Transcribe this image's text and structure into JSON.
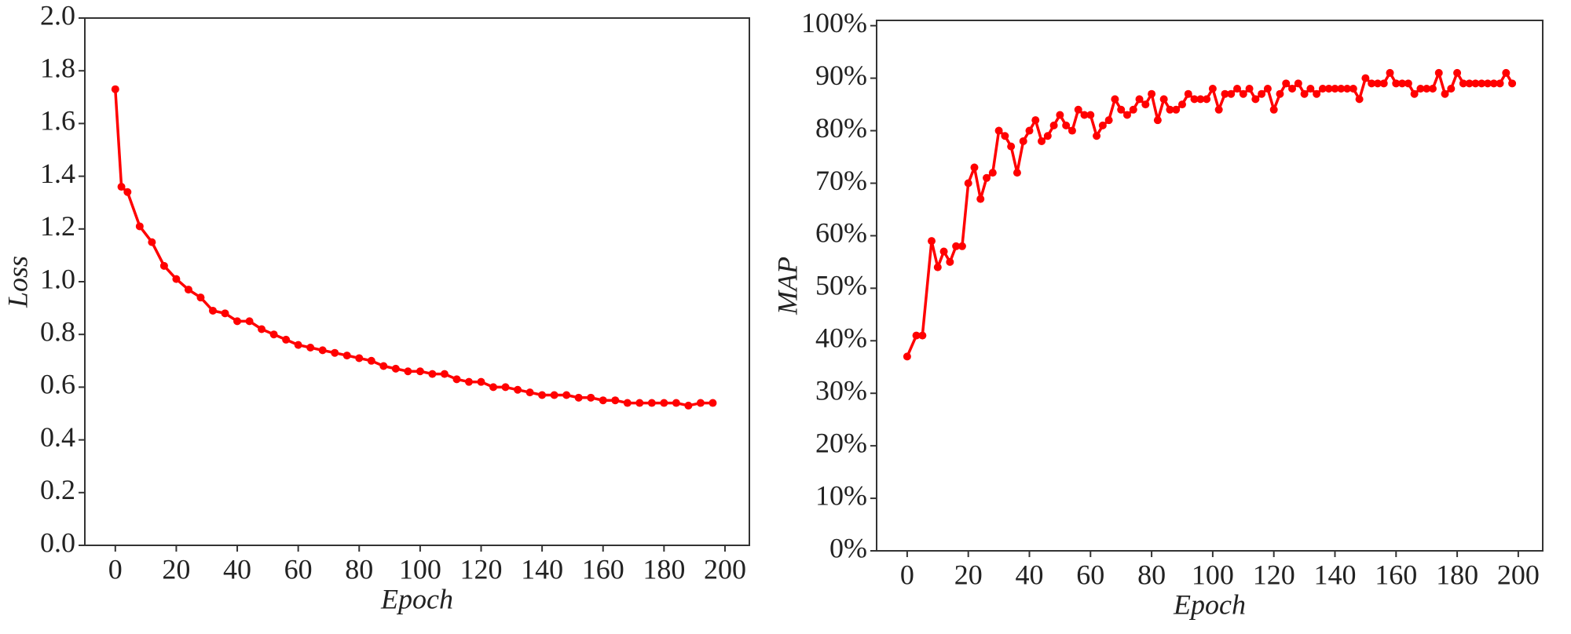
{
  "chart_data": [
    {
      "type": "line",
      "xlabel": "Epoch",
      "ylabel": "Loss",
      "color": "#ff0000",
      "x": [
        0,
        2,
        4,
        8,
        12,
        16,
        20,
        24,
        28,
        32,
        36,
        40,
        44,
        48,
        52,
        56,
        60,
        64,
        68,
        72,
        76,
        80,
        84,
        88,
        92,
        96,
        100,
        104,
        108,
        112,
        116,
        120,
        124,
        128,
        132,
        136,
        140,
        144,
        148,
        152,
        156,
        160,
        164,
        168,
        172,
        176,
        180,
        184,
        188,
        192,
        196
      ],
      "values": [
        1.73,
        1.36,
        1.34,
        1.21,
        1.15,
        1.06,
        1.01,
        0.97,
        0.94,
        0.89,
        0.88,
        0.85,
        0.85,
        0.82,
        0.8,
        0.78,
        0.76,
        0.75,
        0.74,
        0.73,
        0.72,
        0.71,
        0.7,
        0.68,
        0.67,
        0.66,
        0.66,
        0.65,
        0.65,
        0.63,
        0.62,
        0.62,
        0.6,
        0.6,
        0.59,
        0.58,
        0.57,
        0.57,
        0.57,
        0.56,
        0.56,
        0.55,
        0.55,
        0.54,
        0.54,
        0.54,
        0.54,
        0.54,
        0.53,
        0.54,
        0.54
      ],
      "xlim": [
        -10,
        208
      ],
      "xticks": [
        0,
        20,
        40,
        60,
        80,
        100,
        120,
        140,
        160,
        180,
        200
      ],
      "ylim": [
        0,
        2
      ],
      "yticks": [
        {
          "value": 0,
          "label": "0.0"
        },
        {
          "value": 0.2,
          "label": "0.2"
        },
        {
          "value": 0.4,
          "label": "0.4"
        },
        {
          "value": 0.6,
          "label": "0.6"
        },
        {
          "value": 0.8,
          "label": "0.8"
        },
        {
          "value": 1,
          "label": "1.0"
        },
        {
          "value": 1.2,
          "label": "1.2"
        },
        {
          "value": 1.4,
          "label": "1.4"
        },
        {
          "value": 1.6,
          "label": "1.6"
        },
        {
          "value": 1.8,
          "label": "1.8"
        },
        {
          "value": 2,
          "label": "2.0"
        }
      ]
    },
    {
      "type": "line",
      "xlabel": "Epoch",
      "ylabel": "MAP",
      "color": "#ff0000",
      "x": [
        0,
        3,
        5,
        8,
        10,
        12,
        14,
        16,
        18,
        20,
        22,
        24,
        26,
        28,
        30,
        32,
        34,
        36,
        38,
        40,
        42,
        44,
        46,
        48,
        50,
        52,
        54,
        56,
        58,
        60,
        62,
        64,
        66,
        68,
        70,
        72,
        74,
        76,
        78,
        80,
        82,
        84,
        86,
        88,
        90,
        92,
        94,
        96,
        98,
        100,
        102,
        104,
        106,
        108,
        110,
        112,
        114,
        116,
        118,
        120,
        122,
        124,
        126,
        128,
        130,
        132,
        134,
        136,
        138,
        140,
        142,
        144,
        146,
        148,
        150,
        152,
        154,
        156,
        158,
        160,
        162,
        164,
        166,
        168,
        170,
        172,
        174,
        176,
        178,
        180,
        182,
        184,
        186,
        188,
        190,
        192,
        194,
        196,
        198
      ],
      "values": [
        37,
        41,
        41,
        59,
        54,
        57,
        55,
        58,
        58,
        70,
        73,
        67,
        71,
        72,
        80,
        79,
        77,
        72,
        78,
        80,
        82,
        78,
        79,
        81,
        83,
        81,
        80,
        84,
        83,
        83,
        79,
        81,
        82,
        86,
        84,
        83,
        84,
        86,
        85,
        87,
        82,
        86,
        84,
        84,
        85,
        87,
        86,
        86,
        86,
        88,
        84,
        87,
        87,
        88,
        87,
        88,
        86,
        87,
        88,
        84,
        87,
        89,
        88,
        89,
        87,
        88,
        87,
        88,
        88,
        88,
        88,
        88,
        88,
        86,
        90,
        89,
        89,
        89,
        91,
        89,
        89,
        89,
        87,
        88,
        88,
        88,
        91,
        87,
        88,
        91,
        89,
        89,
        89,
        89,
        89,
        89,
        89,
        91,
        89
      ],
      "xlim": [
        -10,
        208
      ],
      "xticks": [
        0,
        20,
        40,
        60,
        80,
        100,
        120,
        140,
        160,
        180,
        200
      ],
      "ylim": [
        0,
        101
      ],
      "yticks": [
        {
          "value": 0,
          "label": "0%"
        },
        {
          "value": 10,
          "label": "10%"
        },
        {
          "value": 20,
          "label": "20%"
        },
        {
          "value": 30,
          "label": "30%"
        },
        {
          "value": 40,
          "label": "40%"
        },
        {
          "value": 50,
          "label": "50%"
        },
        {
          "value": 60,
          "label": "60%"
        },
        {
          "value": 70,
          "label": "70%"
        },
        {
          "value": 80,
          "label": "80%"
        },
        {
          "value": 90,
          "label": "90%"
        },
        {
          "value": 100,
          "label": "100%"
        }
      ]
    }
  ]
}
